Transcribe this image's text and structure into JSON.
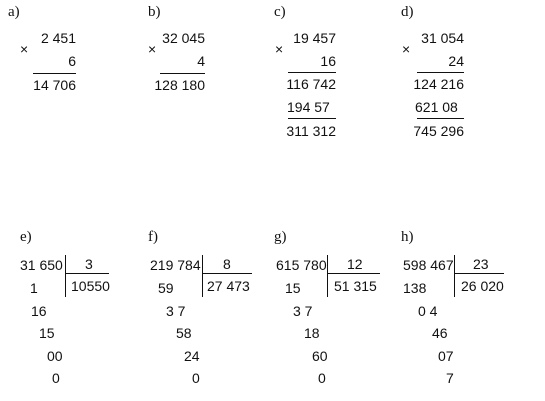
{
  "multiplication": {
    "a": {
      "label": "a)",
      "sign": "×",
      "m1": "2 451",
      "m2": "6",
      "result": "14 706"
    },
    "b": {
      "label": "b)",
      "sign": "×",
      "m1": "32 045",
      "m2": "4",
      "result": "128 180"
    },
    "c": {
      "label": "c)",
      "sign": "×",
      "m1": "19 457",
      "m2": "16",
      "p1": "116 742",
      "p2": "194 57",
      "result": "311 312"
    },
    "d": {
      "label": "d)",
      "sign": "×",
      "m1": "31 054",
      "m2": "24",
      "p1": "124 216",
      "p2": "621 08",
      "result": "745 296"
    }
  },
  "division": {
    "e": {
      "label": "e)",
      "dividend": "31 650",
      "divisor": "3",
      "quotient": "10550",
      "steps": [
        "1",
        "16",
        "15",
        "00",
        "0"
      ]
    },
    "f": {
      "label": "f)",
      "dividend": "219 784",
      "divisor": "8",
      "quotient": "27 473",
      "steps": [
        "59",
        "3 7",
        "58",
        "24",
        "0"
      ]
    },
    "g": {
      "label": "g)",
      "dividend": "615 780",
      "divisor": "12",
      "quotient": "51 315",
      "steps": [
        "15",
        "3 7",
        "18",
        "60",
        "0"
      ]
    },
    "h": {
      "label": "h)",
      "dividend": "598 467",
      "divisor": "23",
      "quotient": "26 020",
      "steps": [
        "138",
        "0 4",
        "46",
        "07",
        "7"
      ]
    }
  }
}
